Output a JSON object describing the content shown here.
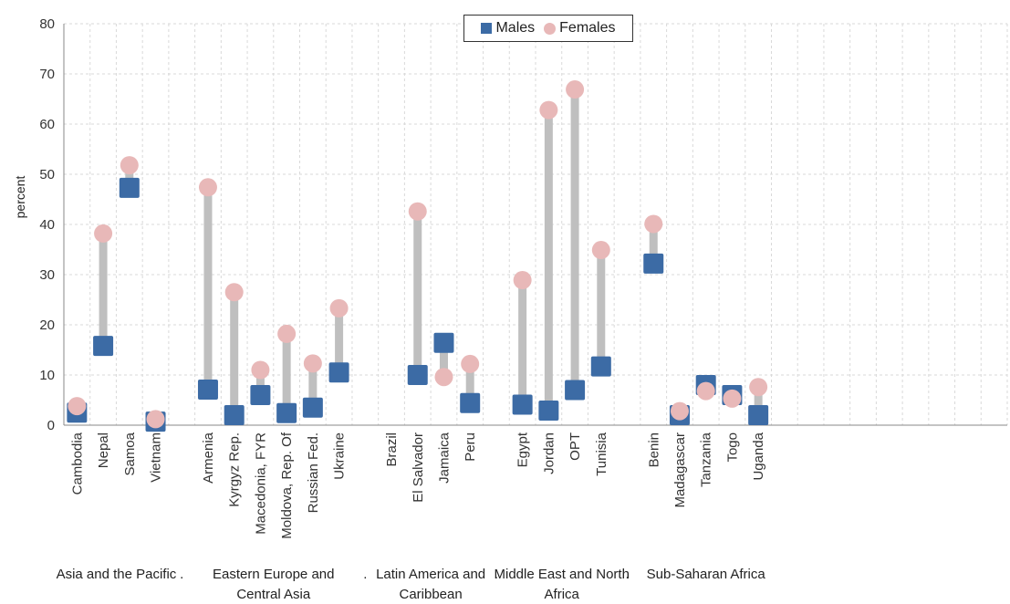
{
  "chart_data": {
    "type": "dumbbell",
    "ylabel": "percent",
    "ylim": [
      0,
      80
    ],
    "yticks": [
      0,
      10,
      20,
      30,
      40,
      50,
      60,
      70,
      80
    ],
    "grid": true,
    "legend_position": "top-center",
    "series": [
      {
        "name": "Males",
        "marker": "square",
        "color": "#3c6ba5"
      },
      {
        "name": "Females",
        "marker": "circle",
        "color": "#e8b8b8"
      }
    ],
    "connector_color": "#bfbfbf",
    "group_separator": ".",
    "groups": [
      {
        "name": "Asia and the Pacific",
        "countries": [
          {
            "name": "Cambodia",
            "males": 2.5,
            "females": 3.8
          },
          {
            "name": "Nepal",
            "males": 15.8,
            "females": 38.2
          },
          {
            "name": "Samoa",
            "males": 47.3,
            "females": 51.8
          },
          {
            "name": "Vietnam",
            "males": 0.7,
            "females": 1.2
          }
        ]
      },
      {
        "name": "Eastern Europe and Central Asia",
        "countries": [
          {
            "name": "Armenia",
            "males": 7.1,
            "females": 47.4
          },
          {
            "name": "Kyrgyz Rep.",
            "males": 2.0,
            "females": 26.5
          },
          {
            "name": "Macedonia, FYR",
            "males": 6.0,
            "females": 11.0
          },
          {
            "name": "Moldova, Rep. Of",
            "males": 2.4,
            "females": 18.2
          },
          {
            "name": "Russian Fed.",
            "males": 3.5,
            "females": 12.3
          },
          {
            "name": "Ukraine",
            "males": 10.5,
            "females": 23.3
          }
        ]
      },
      {
        "name": "Latin America and Caribbean",
        "countries": [
          {
            "name": "Brazil",
            "males": null,
            "females": null
          },
          {
            "name": "El Salvador",
            "males": 10.0,
            "females": 42.6
          },
          {
            "name": "Jamaica",
            "males": 16.4,
            "females": 9.6
          },
          {
            "name": "Peru",
            "males": 4.4,
            "females": 12.2
          }
        ]
      },
      {
        "name": "Middle East and North Africa",
        "countries": [
          {
            "name": "Egypt",
            "males": 4.1,
            "females": 28.9
          },
          {
            "name": "Jordan",
            "males": 2.9,
            "females": 62.8
          },
          {
            "name": "OPT",
            "males": 7.0,
            "females": 66.9
          },
          {
            "name": "Tunisia",
            "males": 11.7,
            "females": 34.9
          }
        ]
      },
      {
        "name": "Sub-Saharan Africa",
        "countries": [
          {
            "name": "Benin",
            "males": 32.2,
            "females": 40.1
          },
          {
            "name": "Madagascar",
            "males": 2.0,
            "females": 2.8
          },
          {
            "name": "Tanzania",
            "males": 8.0,
            "females": 6.8
          },
          {
            "name": "Togo",
            "males": 6.0,
            "females": 5.3
          },
          {
            "name": "Uganda",
            "males": 2.0,
            "females": 7.6
          }
        ]
      }
    ]
  }
}
